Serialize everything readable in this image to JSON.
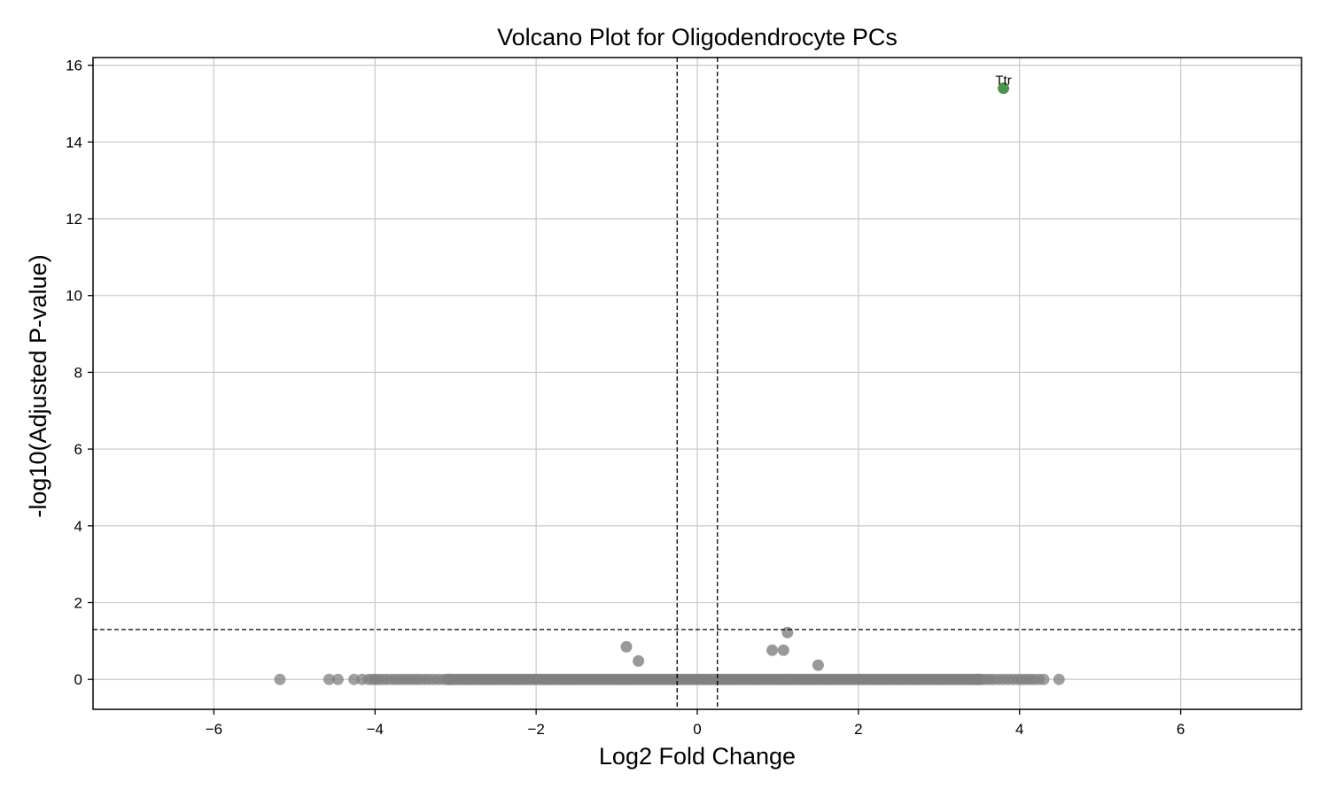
{
  "chart_data": {
    "type": "scatter",
    "title": "Volcano Plot for Oligodendrocyte PCs",
    "xlabel": "Log2 Fold Change",
    "ylabel": "-log10(Adjusted P-value)",
    "xlim": [
      -7.5,
      7.5
    ],
    "ylim": [
      -0.78,
      16.2
    ],
    "xticks": [
      -6,
      -4,
      -2,
      0,
      2,
      4,
      6
    ],
    "xtick_labels": [
      "−6",
      "−4",
      "−2",
      "0",
      "2",
      "4",
      "6"
    ],
    "yticks": [
      0,
      2,
      4,
      6,
      8,
      10,
      12,
      14,
      16
    ],
    "ytick_labels": [
      "0",
      "2",
      "4",
      "6",
      "8",
      "10",
      "12",
      "14",
      "16"
    ],
    "grid": true,
    "threshold_lines": {
      "x": [
        -0.25,
        0.25
      ],
      "y": [
        1.3
      ]
    },
    "colors": {
      "not_significant": "#808080",
      "significant": "#1e7b1e",
      "threshold": "#000000",
      "grid": "#cccccc"
    },
    "series": [
      {
        "name": "",
        "color": "#808080",
        "points": [
          [
            -0.88,
            0.85
          ],
          [
            -0.73,
            0.48
          ],
          [
            0.93,
            0.76
          ],
          [
            1.07,
            0.76
          ],
          [
            1.12,
            1.22
          ],
          [
            1.5,
            0.37
          ]
        ],
        "zero_points_x": [
          -5.18,
          -4.57,
          -4.46,
          -4.26,
          -4.16,
          -4.08,
          -4.03,
          -3.99,
          -3.95,
          -3.9,
          -3.85,
          -3.79,
          -3.74,
          -3.69,
          -3.64,
          -3.59,
          -3.54,
          -3.49,
          -3.44,
          -3.38,
          -3.33,
          -3.27,
          -3.21,
          -3.15,
          -3.09,
          3.48,
          3.53,
          3.58,
          3.63,
          3.68,
          3.74,
          3.8,
          3.86,
          3.92,
          3.98,
          4.03,
          4.08,
          4.13,
          4.18,
          4.24,
          4.3,
          4.49
        ],
        "dense_zero_range": [
          -3.1,
          3.5
        ]
      },
      {
        "name": "",
        "color": "#1e7b1e",
        "points": [
          [
            3.8,
            15.4
          ]
        ]
      }
    ],
    "annotations": [
      {
        "text": "Ttr",
        "x": 3.8,
        "y": 15.4
      }
    ]
  }
}
